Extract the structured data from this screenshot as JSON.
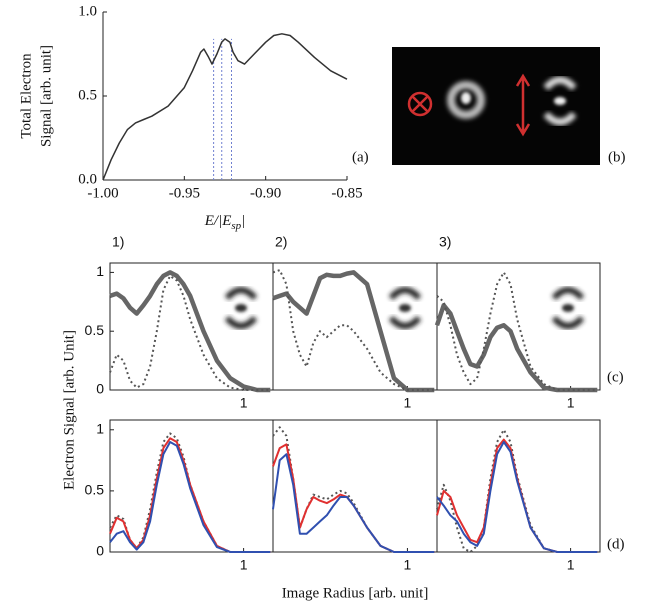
{
  "figure": {
    "ylabel": "Electron Signal [arb. Unit]",
    "xlabel": "Image Radius [arb. unit]",
    "label_c": "(c)",
    "label_d": "(d)"
  },
  "panel_b": {
    "label": "(b)"
  },
  "chart_data": [
    {
      "type": "line",
      "panel_label": "(a)",
      "ylabel_lines": [
        "Total Electron",
        "Signal [arb. unit]"
      ],
      "xlabel": "E/|E",
      "xlabel_sub": "sp",
      "xlabel_end": "|",
      "x": [
        -1.0,
        -0.995,
        -0.99,
        -0.985,
        -0.98,
        -0.975,
        -0.97,
        -0.96,
        -0.95,
        -0.945,
        -0.94,
        -0.938,
        -0.935,
        -0.933,
        -0.93,
        -0.927,
        -0.925,
        -0.922,
        -0.92,
        -0.917,
        -0.913,
        -0.91,
        -0.905,
        -0.9,
        -0.895,
        -0.89,
        -0.885,
        -0.88,
        -0.87,
        -0.86,
        -0.85
      ],
      "series": [
        {
          "color": "#333333",
          "style": "solid",
          "values": [
            0.0,
            0.12,
            0.22,
            0.3,
            0.34,
            0.36,
            0.38,
            0.44,
            0.55,
            0.65,
            0.76,
            0.78,
            0.73,
            0.69,
            0.75,
            0.82,
            0.84,
            0.82,
            0.76,
            0.71,
            0.69,
            0.72,
            0.77,
            0.82,
            0.86,
            0.87,
            0.86,
            0.82,
            0.73,
            0.65,
            0.6
          ]
        }
      ],
      "vlines": [
        -0.932,
        -0.927,
        -0.921
      ],
      "vline_color": "#7080d0",
      "xlim": [
        -1.0,
        -0.85
      ],
      "ylim": [
        0,
        1.0
      ],
      "xticks": [
        {
          "value": -1.0,
          "label": "-1.00"
        },
        -0.95,
        {
          "value": -0.9,
          "label": "-0.90"
        },
        -0.85
      ],
      "yticks": [
        {
          "value": 0,
          "label": "0.0"
        },
        0.5,
        {
          "value": 1.0,
          "label": "1.0"
        }
      ]
    },
    {
      "type": "line",
      "title": "1)",
      "xlim": [
        0,
        1.22
      ],
      "ylim": [
        0,
        1.08
      ],
      "xticks": [
        1
      ],
      "yticks": [
        0,
        0.5,
        1
      ],
      "x": [
        0,
        0.05,
        0.1,
        0.15,
        0.2,
        0.25,
        0.3,
        0.35,
        0.4,
        0.45,
        0.5,
        0.55,
        0.6,
        0.7,
        0.8,
        0.9,
        1.0,
        1.1,
        1.2
      ],
      "series": [
        {
          "color": "#666666",
          "style": "thick",
          "values": [
            0.8,
            0.82,
            0.78,
            0.7,
            0.65,
            0.72,
            0.8,
            0.9,
            0.97,
            1.0,
            0.97,
            0.9,
            0.8,
            0.5,
            0.25,
            0.1,
            0.03,
            0,
            0
          ]
        },
        {
          "color": "#555555",
          "style": "dotted",
          "values": [
            0.15,
            0.3,
            0.25,
            0.08,
            0.02,
            0.05,
            0.2,
            0.5,
            0.85,
            0.97,
            0.93,
            0.8,
            0.6,
            0.3,
            0.1,
            0.02,
            0,
            0,
            0
          ]
        }
      ]
    },
    {
      "type": "line",
      "title": "2)",
      "xlim": [
        0,
        1.22
      ],
      "ylim": [
        0,
        1.08
      ],
      "xticks": [
        1
      ],
      "x": [
        0,
        0.05,
        0.1,
        0.15,
        0.2,
        0.25,
        0.3,
        0.35,
        0.4,
        0.45,
        0.5,
        0.55,
        0.6,
        0.7,
        0.8,
        0.9,
        1.0,
        1.1,
        1.2
      ],
      "series": [
        {
          "color": "#666666",
          "style": "thick",
          "values": [
            0.78,
            0.8,
            0.82,
            0.75,
            0.7,
            0.65,
            0.8,
            0.95,
            0.98,
            0.97,
            0.97,
            0.99,
            1.0,
            0.9,
            0.5,
            0.1,
            0,
            0,
            0
          ]
        },
        {
          "color": "#555555",
          "style": "dotted",
          "values": [
            1.0,
            1.02,
            0.9,
            0.5,
            0.3,
            0.2,
            0.4,
            0.5,
            0.45,
            0.5,
            0.55,
            0.55,
            0.5,
            0.35,
            0.15,
            0.05,
            0,
            0,
            0
          ]
        }
      ]
    },
    {
      "type": "line",
      "title": "3)",
      "xlim": [
        0,
        1.22
      ],
      "ylim": [
        0,
        1.08
      ],
      "xticks": [
        1
      ],
      "x": [
        0,
        0.05,
        0.1,
        0.15,
        0.2,
        0.25,
        0.3,
        0.35,
        0.4,
        0.45,
        0.5,
        0.55,
        0.6,
        0.7,
        0.8,
        0.9,
        1.0,
        1.1,
        1.2
      ],
      "series": [
        {
          "color": "#666666",
          "style": "thick",
          "values": [
            0.55,
            0.72,
            0.65,
            0.5,
            0.35,
            0.22,
            0.2,
            0.3,
            0.45,
            0.53,
            0.55,
            0.5,
            0.35,
            0.15,
            0.02,
            0,
            0,
            0,
            0
          ]
        },
        {
          "color": "#555555",
          "style": "dotted",
          "values": [
            0.8,
            0.75,
            0.55,
            0.3,
            0.15,
            0.05,
            0.1,
            0.35,
            0.65,
            0.9,
            1.0,
            0.9,
            0.6,
            0.2,
            0.05,
            0,
            0,
            0,
            0
          ]
        }
      ]
    },
    {
      "type": "line",
      "xlim": [
        0,
        1.22
      ],
      "ylim": [
        0,
        1.08
      ],
      "xticks": [
        1
      ],
      "yticks": [
        0,
        0.5,
        1
      ],
      "x": [
        0,
        0.05,
        0.1,
        0.15,
        0.2,
        0.25,
        0.3,
        0.35,
        0.4,
        0.45,
        0.5,
        0.55,
        0.6,
        0.7,
        0.8,
        0.9,
        1.0,
        1.1,
        1.2
      ],
      "series": [
        {
          "color": "#555555",
          "style": "dotted",
          "values": [
            0.2,
            0.3,
            0.27,
            0.1,
            0.03,
            0.12,
            0.35,
            0.65,
            0.9,
            0.97,
            0.93,
            0.78,
            0.55,
            0.25,
            0.05,
            0,
            0,
            0,
            0
          ]
        },
        {
          "color": "#e03030",
          "style": "solid",
          "values": [
            0.15,
            0.28,
            0.25,
            0.1,
            0.03,
            0.1,
            0.3,
            0.6,
            0.85,
            0.93,
            0.9,
            0.75,
            0.55,
            0.25,
            0.05,
            0,
            0,
            0,
            0
          ]
        },
        {
          "color": "#3050b0",
          "style": "solid",
          "values": [
            0.08,
            0.15,
            0.17,
            0.08,
            0.02,
            0.08,
            0.25,
            0.55,
            0.8,
            0.9,
            0.87,
            0.72,
            0.52,
            0.22,
            0.04,
            0,
            0,
            0,
            0
          ]
        }
      ]
    },
    {
      "type": "line",
      "xlim": [
        0,
        1.22
      ],
      "ylim": [
        0,
        1.08
      ],
      "xticks": [
        1
      ],
      "x": [
        0,
        0.05,
        0.1,
        0.15,
        0.2,
        0.25,
        0.3,
        0.35,
        0.4,
        0.45,
        0.5,
        0.55,
        0.6,
        0.7,
        0.8,
        0.9,
        1.0,
        1.1,
        1.2
      ],
      "series": [
        {
          "color": "#555555",
          "style": "dotted",
          "values": [
            0.95,
            1.02,
            0.95,
            0.6,
            0.2,
            0.35,
            0.47,
            0.45,
            0.43,
            0.47,
            0.5,
            0.48,
            0.4,
            0.2,
            0.05,
            0,
            0,
            0,
            0
          ]
        },
        {
          "color": "#e03030",
          "style": "solid",
          "values": [
            0.7,
            0.85,
            0.88,
            0.6,
            0.2,
            0.35,
            0.45,
            0.42,
            0.4,
            0.43,
            0.47,
            0.45,
            0.38,
            0.2,
            0.05,
            0,
            0,
            0,
            0
          ]
        },
        {
          "color": "#3050b0",
          "style": "solid",
          "values": [
            0.35,
            0.75,
            0.8,
            0.55,
            0.15,
            0.15,
            0.2,
            0.25,
            0.3,
            0.38,
            0.45,
            0.45,
            0.38,
            0.2,
            0.05,
            0,
            0,
            0,
            0
          ]
        }
      ]
    },
    {
      "type": "line",
      "xlim": [
        0,
        1.22
      ],
      "ylim": [
        0,
        1.08
      ],
      "xticks": [
        1
      ],
      "x": [
        0,
        0.05,
        0.1,
        0.15,
        0.2,
        0.25,
        0.3,
        0.35,
        0.4,
        0.45,
        0.5,
        0.55,
        0.6,
        0.7,
        0.8,
        0.9,
        1.0,
        1.1,
        1.2
      ],
      "series": [
        {
          "color": "#555555",
          "style": "dotted",
          "values": [
            0.35,
            0.55,
            0.42,
            0.2,
            0.03,
            0.0,
            0.05,
            0.2,
            0.6,
            0.9,
            1.0,
            0.9,
            0.62,
            0.22,
            0.03,
            0,
            0,
            0,
            0
          ]
        },
        {
          "color": "#e03030",
          "style": "solid",
          "values": [
            0.3,
            0.5,
            0.45,
            0.3,
            0.2,
            0.1,
            0.08,
            0.2,
            0.55,
            0.85,
            0.92,
            0.85,
            0.6,
            0.2,
            0.03,
            0,
            0,
            0,
            0
          ]
        },
        {
          "color": "#3050b0",
          "style": "solid",
          "values": [
            0.45,
            0.38,
            0.3,
            0.25,
            0.15,
            0.08,
            0.05,
            0.15,
            0.5,
            0.8,
            0.9,
            0.82,
            0.58,
            0.2,
            0.03,
            0,
            0,
            0,
            0
          ]
        }
      ]
    }
  ]
}
